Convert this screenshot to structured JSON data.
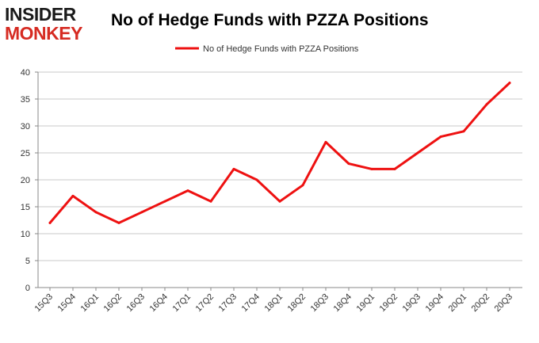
{
  "logo": {
    "line1": "INSIDER",
    "line2": "MONKEY"
  },
  "chart_data": {
    "type": "line",
    "title": "No of Hedge Funds with PZZA Positions",
    "categories": [
      "15Q3",
      "15Q4",
      "16Q1",
      "16Q2",
      "16Q3",
      "16Q4",
      "17Q1",
      "17Q2",
      "17Q3",
      "17Q4",
      "18Q1",
      "18Q2",
      "18Q3",
      "18Q4",
      "19Q1",
      "19Q2",
      "19Q3",
      "19Q4",
      "20Q1",
      "20Q2",
      "20Q3"
    ],
    "series": [
      {
        "name": "No of Hedge Funds with PZZA Positions",
        "values": [
          12,
          17,
          14,
          12,
          14,
          16,
          18,
          16,
          22,
          20,
          16,
          19,
          27,
          23,
          22,
          22,
          25,
          28,
          29,
          34,
          38
        ],
        "color": "#ee1111"
      }
    ],
    "ylim": [
      0,
      40
    ],
    "yticks": [
      0,
      5,
      10,
      15,
      20,
      25,
      30,
      35,
      40
    ],
    "grid": true,
    "legend": "top-center",
    "xlabel": "",
    "ylabel": ""
  }
}
